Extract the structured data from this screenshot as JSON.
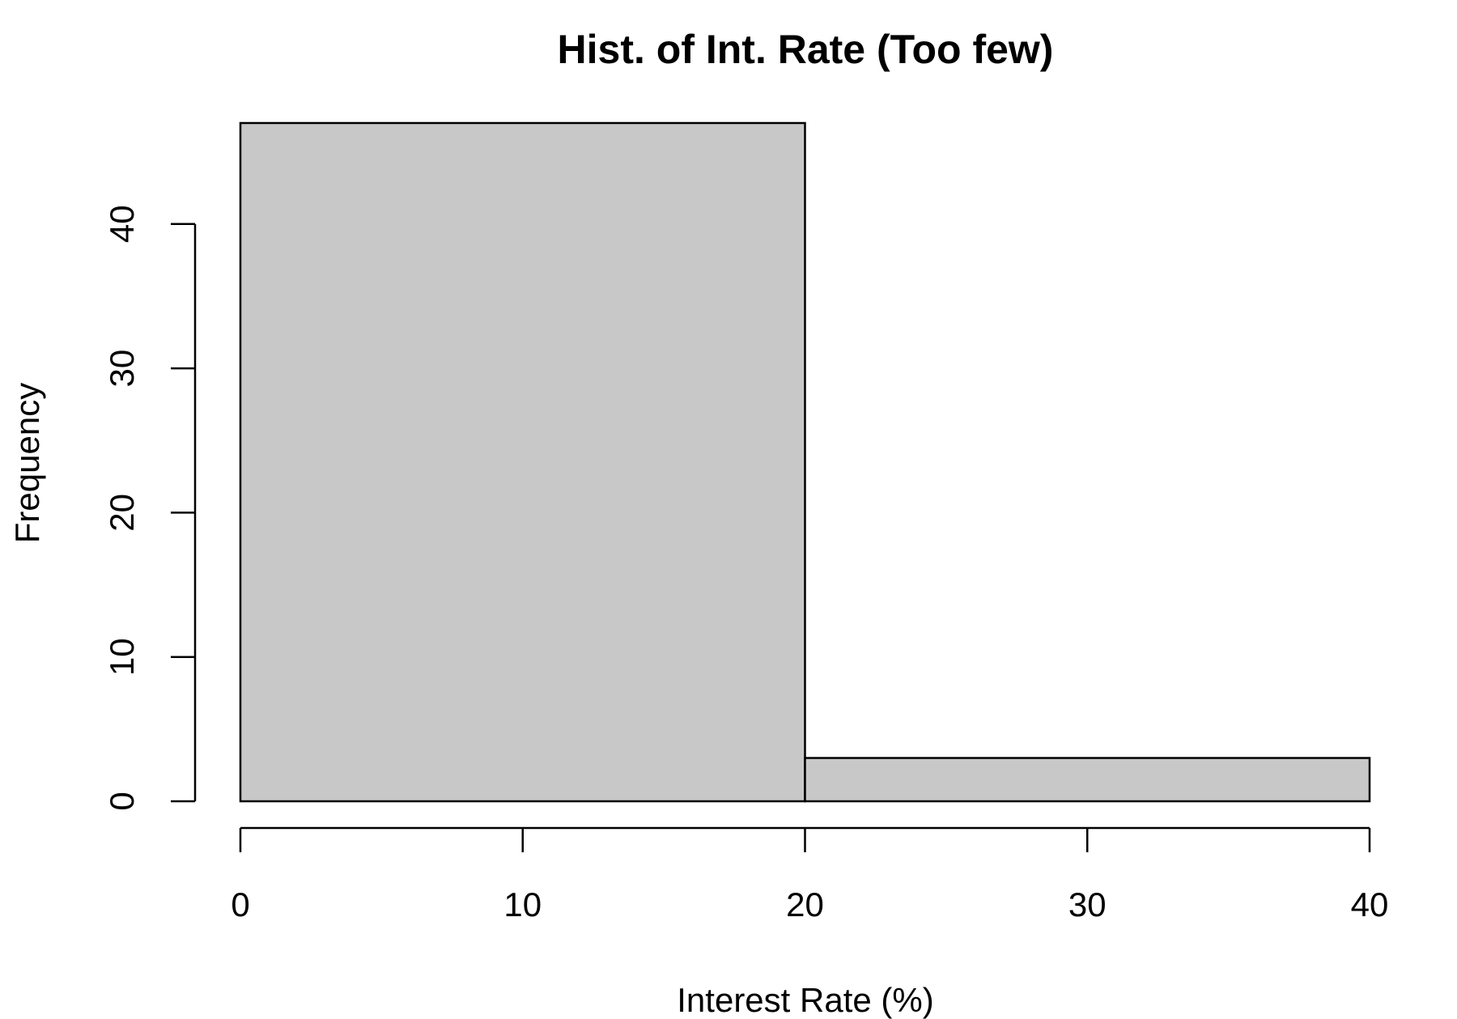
{
  "chart_data": {
    "type": "bar",
    "subtype": "histogram",
    "title": "Hist. of Int. Rate (Too few)",
    "xlabel": "Interest Rate (%)",
    "ylabel": "Frequency",
    "bins": [
      {
        "x_start": 0,
        "x_end": 20,
        "value": 47
      },
      {
        "x_start": 20,
        "x_end": 40,
        "value": 3
      }
    ],
    "xlim": [
      0,
      40
    ],
    "ylim": [
      0,
      47
    ],
    "x_ticks": [
      0,
      10,
      20,
      30,
      40
    ],
    "y_ticks": [
      0,
      10,
      20,
      30,
      40
    ],
    "bar_color": "#c8c8c8",
    "edge_color": "#000000",
    "grid": false,
    "legend": "none"
  }
}
